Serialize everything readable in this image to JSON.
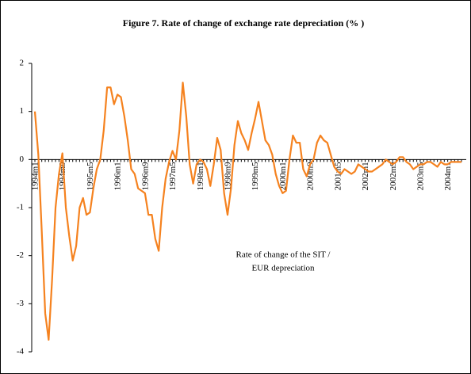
{
  "chart_data": {
    "type": "line",
    "title": "Figure 7. Rate of change of exchange rate depreciation (% )",
    "annotation": [
      "Rate of change of the SIT /",
      "EUR depreciation"
    ],
    "categories": [
      "1994m1",
      null,
      null,
      null,
      null,
      null,
      null,
      null,
      "1994m9",
      null,
      null,
      null,
      null,
      null,
      null,
      null,
      "1995m5",
      null,
      null,
      null,
      null,
      null,
      null,
      null,
      "1996m1",
      null,
      null,
      null,
      null,
      null,
      null,
      null,
      "1996m9",
      null,
      null,
      null,
      null,
      null,
      null,
      null,
      "1997m5",
      null,
      null,
      null,
      null,
      null,
      null,
      null,
      "1998m1",
      null,
      null,
      null,
      null,
      null,
      null,
      null,
      "1998m9",
      null,
      null,
      null,
      null,
      null,
      null,
      null,
      "1999m5",
      null,
      null,
      null,
      null,
      null,
      null,
      null,
      "2000m1",
      null,
      null,
      null,
      null,
      null,
      null,
      null,
      "2000m9",
      null,
      null,
      null,
      null,
      null,
      null,
      null,
      "2001m5",
      null,
      null,
      null,
      null,
      null,
      null,
      null,
      "2002m1",
      null,
      null,
      null,
      null,
      null,
      null,
      null,
      "2002m9",
      null,
      null,
      null,
      null,
      null,
      null,
      null,
      "2003m5",
      null,
      null,
      null,
      null,
      null,
      null,
      null,
      "2004m1",
      null,
      null,
      null,
      null
    ],
    "values": [
      1.0,
      0.1,
      -1.5,
      -3.2,
      -3.75,
      -2.5,
      -1.0,
      -0.3,
      0.13,
      -1.0,
      -1.6,
      -2.1,
      -1.8,
      -1.0,
      -0.8,
      -1.15,
      -1.1,
      -0.6,
      -0.2,
      0.0,
      0.6,
      1.5,
      1.5,
      1.15,
      1.35,
      1.3,
      0.9,
      0.4,
      -0.2,
      -0.3,
      -0.6,
      -0.65,
      -0.7,
      -1.15,
      -1.15,
      -1.65,
      -1.9,
      -1.0,
      -0.4,
      -0.05,
      0.18,
      0.0,
      0.6,
      1.6,
      0.9,
      -0.1,
      -0.5,
      -0.1,
      0.0,
      -0.05,
      -0.2,
      -0.55,
      -0.1,
      0.45,
      0.2,
      -0.7,
      -1.15,
      -0.6,
      0.3,
      0.8,
      0.55,
      0.4,
      0.2,
      0.55,
      0.85,
      1.2,
      0.8,
      0.4,
      0.3,
      0.1,
      -0.3,
      -0.55,
      -0.7,
      -0.65,
      0.0,
      0.5,
      0.35,
      0.35,
      -0.2,
      -0.35,
      -0.1,
      0.0,
      0.35,
      0.5,
      0.4,
      0.35,
      0.1,
      -0.15,
      -0.25,
      -0.3,
      -0.2,
      -0.25,
      -0.3,
      -0.25,
      -0.1,
      -0.15,
      -0.2,
      -0.25,
      -0.25,
      -0.2,
      -0.15,
      -0.1,
      0.0,
      -0.05,
      -0.1,
      -0.05,
      0.05,
      0.05,
      -0.05,
      -0.1,
      -0.2,
      -0.15,
      -0.1,
      -0.1,
      -0.05,
      -0.05,
      -0.1,
      -0.15,
      -0.05,
      -0.1,
      -0.1,
      -0.05,
      -0.05,
      -0.05,
      -0.05
    ],
    "color": "#f5821f",
    "ylim": [
      -4,
      2
    ],
    "yticks": [
      -4,
      -3,
      -2,
      -1,
      0,
      1,
      2
    ]
  }
}
